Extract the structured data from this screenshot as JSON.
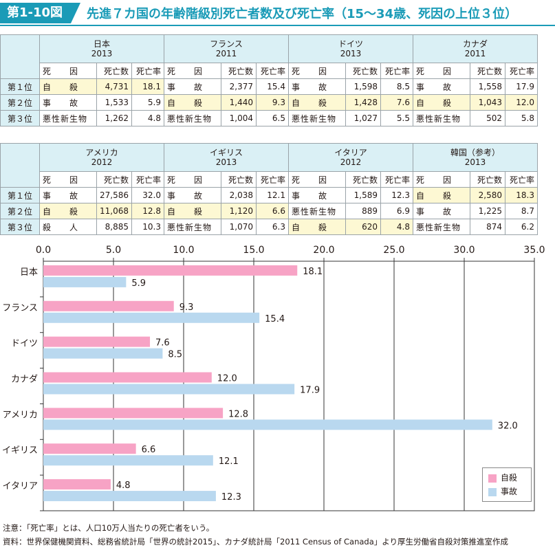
{
  "figure": {
    "label": "第1-10図",
    "title": "先進７カ国の年齢階級別死亡者数及び死亡率（15～34歳、死因の上位３位）"
  },
  "tables": [
    {
      "countries": [
        {
          "name": "日本",
          "year": "2013"
        },
        {
          "name": "フランス",
          "year": "2011"
        },
        {
          "name": "ドイツ",
          "year": "2013"
        },
        {
          "name": "カナダ",
          "year": "2011"
        }
      ],
      "subheaders": [
        "死　　因",
        "死亡数",
        "死亡率"
      ],
      "rows": [
        {
          "rank": "第１位",
          "cells": [
            [
              "自　　殺",
              "4,731",
              "18.1"
            ],
            [
              "事　　故",
              "2,377",
              "15.4"
            ],
            [
              "事　　故",
              "1,598",
              "8.5"
            ],
            [
              "事　　故",
              "1,558",
              "17.9"
            ]
          ]
        },
        {
          "rank": "第２位",
          "cells": [
            [
              "事　　故",
              "1,533",
              "5.9"
            ],
            [
              "自　　殺",
              "1,440",
              "9.3"
            ],
            [
              "自　　殺",
              "1,428",
              "7.6"
            ],
            [
              "自　　殺",
              "1,043",
              "12.0"
            ]
          ]
        },
        {
          "rank": "第３位",
          "cells": [
            [
              "悪性新生物",
              "1,262",
              "4.8"
            ],
            [
              "悪性新生物",
              "1,004",
              "6.5"
            ],
            [
              "悪性新生物",
              "1,027",
              "5.5"
            ],
            [
              "悪性新生物",
              "502",
              "5.8"
            ]
          ]
        }
      ]
    },
    {
      "countries": [
        {
          "name": "アメリカ",
          "year": "2012"
        },
        {
          "name": "イギリス",
          "year": "2013"
        },
        {
          "name": "イタリア",
          "year": "2012"
        },
        {
          "name": "韓国（参考）",
          "year": "2013"
        }
      ],
      "subheaders": [
        "死　　因",
        "死亡数",
        "死亡率"
      ],
      "rows": [
        {
          "rank": "第１位",
          "cells": [
            [
              "事　　故",
              "27,586",
              "32.0"
            ],
            [
              "事　　故",
              "2,038",
              "12.1"
            ],
            [
              "事　　故",
              "1,589",
              "12.3"
            ],
            [
              "自　　殺",
              "2,580",
              "18.3"
            ]
          ]
        },
        {
          "rank": "第２位",
          "cells": [
            [
              "自　　殺",
              "11,068",
              "12.8"
            ],
            [
              "自　　殺",
              "1,120",
              "6.6"
            ],
            [
              "悪性新生物",
              "889",
              "6.9"
            ],
            [
              "事　　故",
              "1,225",
              "8.7"
            ]
          ]
        },
        {
          "rank": "第３位",
          "cells": [
            [
              "殺　　人",
              "8,885",
              "10.3"
            ],
            [
              "悪性新生物",
              "1,070",
              "6.3"
            ],
            [
              "自　　殺",
              "620",
              "4.8"
            ],
            [
              "悪性新生物",
              "874",
              "6.2"
            ]
          ]
        }
      ]
    }
  ],
  "chart_data": {
    "type": "bar",
    "orientation": "horizontal",
    "categories": [
      "日本",
      "フランス",
      "ドイツ",
      "カナダ",
      "アメリカ",
      "イギリス",
      "イタリア"
    ],
    "series": [
      {
        "name": "自殺",
        "color": "#f7a3c5",
        "values": [
          18.1,
          9.3,
          7.6,
          12.0,
          12.8,
          6.6,
          4.8
        ]
      },
      {
        "name": "事故",
        "color": "#b9d8ef",
        "values": [
          5.9,
          15.4,
          8.5,
          17.9,
          32.0,
          12.1,
          12.3
        ]
      }
    ],
    "xlim": [
      0,
      35
    ],
    "xticks": [
      "0.0",
      "5.0",
      "10.0",
      "15.0",
      "20.0",
      "25.0",
      "30.0",
      "35.0"
    ],
    "grid": true,
    "legend_position": "bottom-right"
  },
  "notes": [
    "注意：「死亡率」とは、人口10万人当たりの死亡者をいう。",
    "資料：世界保健機関資料、総務省統計局「世界の統計2015」、カナダ統計局「2011 Census of Canada」より厚生労働省自殺対策推進室作成"
  ]
}
